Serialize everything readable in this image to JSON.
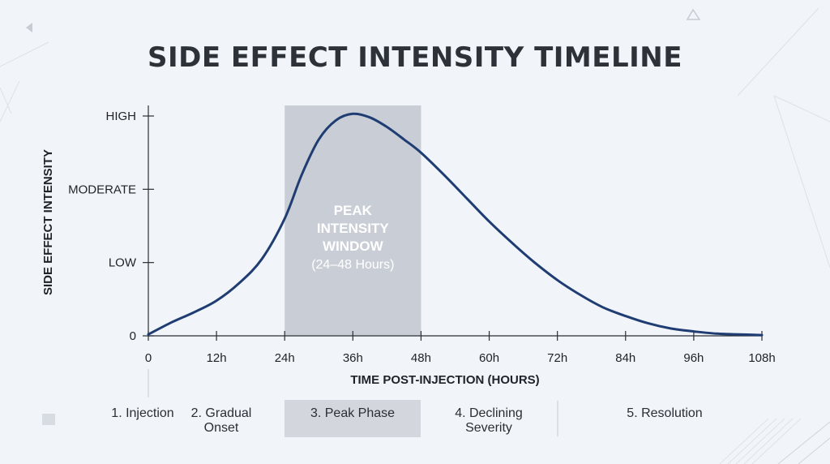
{
  "chart_data": {
    "type": "line",
    "title": "SIDE EFFECT INTENSITY TIMELINE",
    "xlabel": "TIME POST-INJECTION (HOURS)",
    "ylabel": "SIDE EFFECT INTENSITY",
    "xlim": [
      0,
      108
    ],
    "ylim": [
      0,
      3
    ],
    "x_ticks": [
      {
        "value": 0,
        "label": "0"
      },
      {
        "value": 12,
        "label": "12h"
      },
      {
        "value": 24,
        "label": "24h"
      },
      {
        "value": 36,
        "label": "36h"
      },
      {
        "value": 48,
        "label": "48h"
      },
      {
        "value": 60,
        "label": "60h"
      },
      {
        "value": 72,
        "label": "72h"
      },
      {
        "value": 84,
        "label": "84h"
      },
      {
        "value": 96,
        "label": "96h"
      },
      {
        "value": 108,
        "label": "108h"
      }
    ],
    "y_ticks": [
      {
        "value": 0,
        "label": "0"
      },
      {
        "value": 1,
        "label": "LOW"
      },
      {
        "value": 2,
        "label": "MODERATE"
      },
      {
        "value": 3,
        "label": "HIGH"
      }
    ],
    "series": [
      {
        "color": "#1f3d73",
        "x": [
          0,
          4,
          8,
          12,
          16,
          20,
          24,
          27,
          30,
          33,
          36,
          39,
          42,
          45,
          48,
          52,
          56,
          60,
          64,
          68,
          72,
          76,
          80,
          84,
          88,
          92,
          96,
          100,
          104,
          108
        ],
        "y": [
          0.02,
          0.18,
          0.32,
          0.48,
          0.72,
          1.05,
          1.6,
          2.2,
          2.68,
          2.94,
          3.03,
          2.98,
          2.85,
          2.68,
          2.5,
          2.2,
          1.88,
          1.56,
          1.27,
          1.0,
          0.76,
          0.56,
          0.39,
          0.27,
          0.17,
          0.1,
          0.06,
          0.03,
          0.02,
          0.01
        ]
      }
    ],
    "highlight_band": {
      "x_range": [
        24,
        48
      ],
      "color": "#c9ced6",
      "label_lines": [
        "PEAK",
        "INTENSITY",
        "WINDOW"
      ],
      "sublabel": "(24–48 Hours)"
    },
    "phases": [
      {
        "label_lines": [
          "1. Injection"
        ],
        "highlighted": false
      },
      {
        "label_lines": [
          "2. Gradual",
          "Onset"
        ],
        "highlighted": false
      },
      {
        "label_lines": [
          "3. Peak Phase"
        ],
        "highlighted": true
      },
      {
        "label_lines": [
          "4. Declining",
          "Severity"
        ],
        "highlighted": false
      },
      {
        "label_lines": [
          "5. Resolution"
        ],
        "highlighted": false
      }
    ],
    "grid": false,
    "legend": "none"
  }
}
